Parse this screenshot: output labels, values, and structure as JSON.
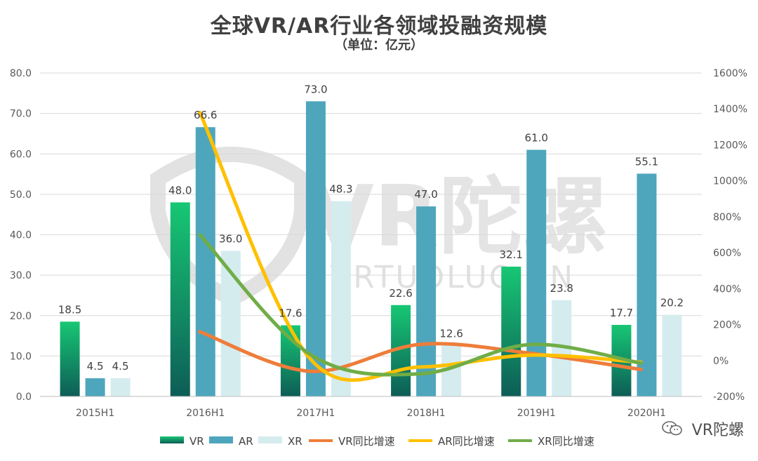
{
  "title": "全球VR/AR行业各领域投融资规模",
  "subtitle": "（单位：亿元）",
  "brand": "VR陀螺",
  "watermark": {
    "main": "VR陀螺",
    "sub": "VRTUOLUO.CN"
  },
  "colors": {
    "VR": "#13b86a",
    "VR_dark": "#0e6457",
    "AR": "#4ea6bd",
    "XR": "#d5ecef",
    "VR_growth": "#ee7d3a",
    "AR_growth": "#ffc000",
    "XR_growth": "#70ad47"
  },
  "chart_data": {
    "type": "bar",
    "categories": [
      "2015H1",
      "2016H1",
      "2017H1",
      "2018H1",
      "2019H1",
      "2020H1"
    ],
    "series": [
      {
        "name": "VR",
        "kind": "bar",
        "values": [
          18.5,
          48.0,
          17.6,
          22.6,
          32.1,
          17.7
        ]
      },
      {
        "name": "AR",
        "kind": "bar",
        "values": [
          4.5,
          66.6,
          73.0,
          47.0,
          61.0,
          55.1
        ]
      },
      {
        "name": "XR",
        "kind": "bar",
        "values": [
          4.5,
          36.0,
          48.3,
          12.6,
          23.8,
          20.2
        ]
      },
      {
        "name": "VR同比增速",
        "kind": "line",
        "axis": "right",
        "values": [
          null,
          160,
          -60,
          90,
          40,
          -50
        ]
      },
      {
        "name": "AR同比增速",
        "kind": "line",
        "axis": "right",
        "values": [
          null,
          1380,
          10,
          -36,
          30,
          -10
        ]
      },
      {
        "name": "XR同比增速",
        "kind": "line",
        "axis": "right",
        "values": [
          null,
          700,
          34,
          -74,
          89,
          -15
        ]
      }
    ],
    "data_labels": [
      [
        "18.5",
        "4.5",
        "4.5"
      ],
      [
        "48.0",
        "66.6",
        "36.0"
      ],
      [
        "17.6",
        "73.0",
        "48.3"
      ],
      [
        "22.6",
        "47.0",
        "12.6"
      ],
      [
        "32.1",
        "61.0",
        "23.8"
      ],
      [
        "17.7",
        "55.1",
        "20.2"
      ]
    ],
    "y_left": {
      "min": 0,
      "max": 80,
      "ticks": [
        "0.0",
        "10.0",
        "20.0",
        "30.0",
        "40.0",
        "50.0",
        "60.0",
        "70.0",
        "80.0"
      ]
    },
    "y_right": {
      "min": -200,
      "max": 1600,
      "ticks": [
        "-200%",
        "0%",
        "200%",
        "400%",
        "600%",
        "800%",
        "1000%",
        "1200%",
        "1400%",
        "1600%"
      ]
    },
    "grid": true,
    "legend_position": "bottom",
    "legend": [
      "VR",
      "AR",
      "XR",
      "VR同比增速",
      "AR同比增速",
      "XR同比增速"
    ]
  }
}
